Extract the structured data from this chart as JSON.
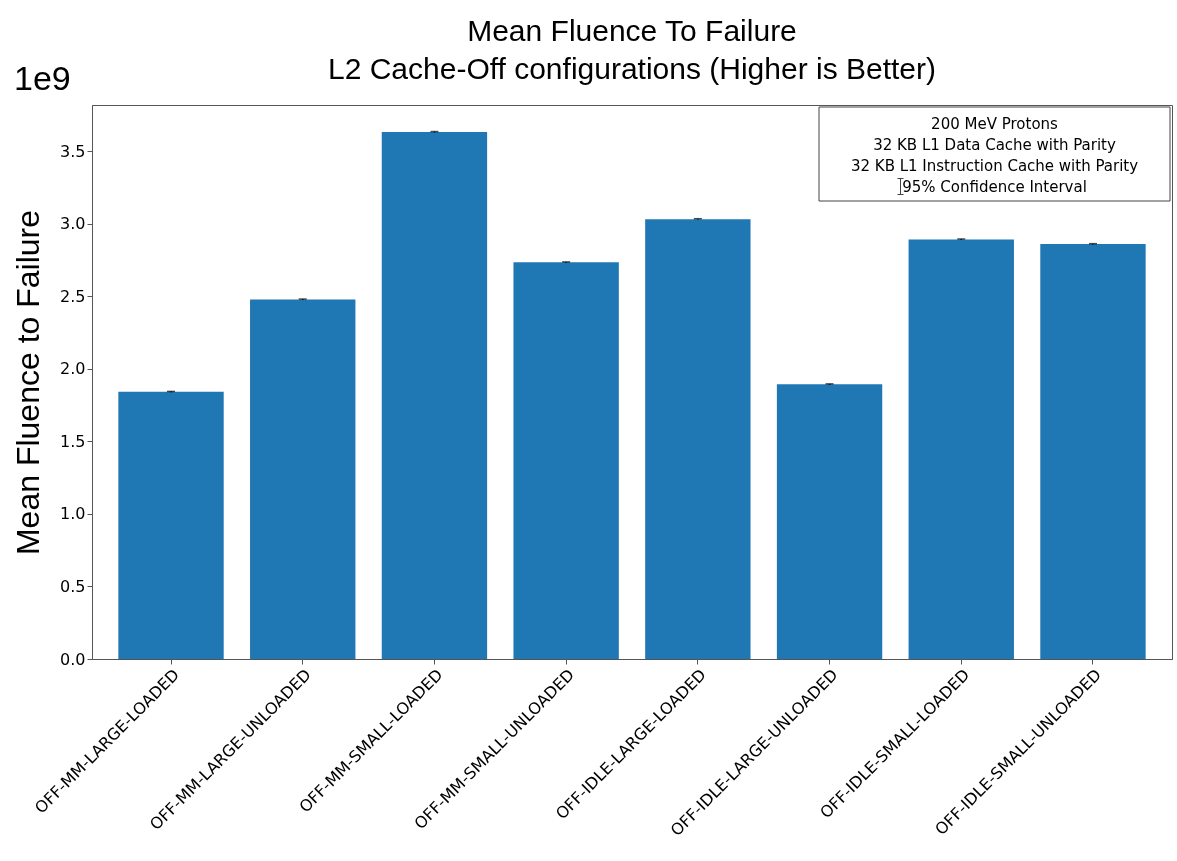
{
  "chart_data": {
    "type": "bar",
    "title": [
      "Mean Fluence To Failure",
      "L2 Cache-Off configurations (Higher is Better)"
    ],
    "ylabel": "Mean Fluence to Failure",
    "categories": [
      "OFF-MM-LARGE-LOADED",
      "OFF-MM-LARGE-UNLOADED",
      "OFF-MM-SMALL-LOADED",
      "OFF-MM-SMALL-UNLOADED",
      "OFF-IDLE-LARGE-LOADED",
      "OFF-IDLE-LARGE-UNLOADED",
      "OFF-IDLE-SMALL-LOADED",
      "OFF-IDLE-SMALL-UNLOADED"
    ],
    "values": [
      1.842,
      2.479,
      3.634,
      2.735,
      3.033,
      1.894,
      2.893,
      2.861
    ],
    "errors": [
      0.003,
      0.003,
      0.003,
      0.003,
      0.003,
      0.003,
      0.003,
      0.003
    ],
    "color": "#1f77b4",
    "ylim": [
      0,
      3.82
    ],
    "yticks": [
      {
        "value": 0,
        "label": "0.0"
      },
      0.5,
      {
        "value": 1,
        "label": "1.0"
      },
      1.5,
      {
        "value": 2,
        "label": "2.0"
      },
      2.5,
      {
        "value": 3,
        "label": "3.0"
      },
      3.5
    ],
    "annotations": [
      "1e9",
      "200 MeV Protons",
      "32 KB L1 Data Cache with Parity",
      "32 KB L1 Instruction Cache with Parity",
      "95% Confidence Interval"
    ],
    "grid": false
  }
}
